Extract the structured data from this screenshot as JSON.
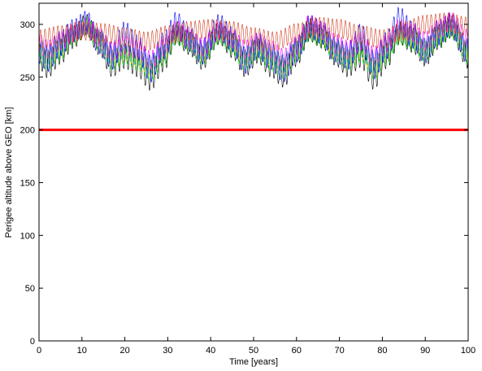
{
  "chart_data": {
    "type": "line",
    "title": "",
    "xlabel": "Time [years]",
    "ylabel": "Perigee altitude above GEO [km]",
    "xlim": [
      0,
      100
    ],
    "ylim": [
      0,
      320
    ],
    "xticks": [
      0,
      10,
      20,
      30,
      40,
      50,
      60,
      70,
      80,
      90,
      100
    ],
    "yticks": [
      0,
      50,
      100,
      150,
      200,
      250,
      300
    ],
    "grid": false,
    "legend": "none",
    "threshold_line": {
      "y": 200,
      "color": "#ff0000"
    },
    "series": [
      {
        "color": "#000000",
        "x": [
          0,
          2,
          5,
          8,
          11,
          14,
          17,
          20,
          23,
          26,
          29,
          32,
          35,
          38,
          42,
          45,
          48,
          51,
          54,
          57,
          60,
          63,
          66,
          69,
          72,
          75,
          78,
          81,
          84,
          87,
          90,
          93,
          96,
          100
        ],
        "y": [
          270,
          262,
          274,
          288,
          300,
          282,
          262,
          270,
          262,
          250,
          268,
          292,
          282,
          268,
          292,
          280,
          262,
          275,
          262,
          253,
          272,
          295,
          288,
          272,
          262,
          272,
          252,
          270,
          292,
          285,
          272,
          288,
          298,
          270
        ],
        "amplitude": [
          12,
          13,
          12,
          11,
          10,
          11,
          12,
          12,
          12,
          13,
          13,
          11,
          11,
          11,
          11,
          12,
          12,
          12,
          12,
          13,
          12,
          11,
          11,
          11,
          12,
          13,
          14,
          12,
          11,
          12,
          12,
          12,
          11,
          12
        ]
      },
      {
        "color": "#00c800",
        "x": [
          0,
          2,
          5,
          8,
          11,
          14,
          17,
          20,
          23,
          26,
          29,
          32,
          35,
          38,
          42,
          45,
          48,
          51,
          54,
          57,
          60,
          63,
          66,
          69,
          72,
          75,
          78,
          81,
          84,
          87,
          90,
          93,
          96,
          100
        ],
        "y": [
          272,
          266,
          276,
          289,
          298,
          284,
          266,
          272,
          266,
          256,
          270,
          290,
          283,
          270,
          290,
          281,
          266,
          276,
          266,
          258,
          274,
          293,
          287,
          274,
          266,
          274,
          258,
          272,
          290,
          285,
          274,
          288,
          296,
          272
        ],
        "amplitude": [
          10,
          10,
          10,
          9,
          9,
          9,
          10,
          10,
          10,
          10,
          10,
          9,
          9,
          9,
          9,
          10,
          10,
          10,
          10,
          10,
          10,
          9,
          9,
          9,
          10,
          10,
          11,
          10,
          9,
          10,
          10,
          10,
          9,
          10
        ]
      },
      {
        "color": "#ffd700",
        "x": [
          0,
          2,
          5,
          8,
          11,
          14,
          17,
          20,
          23,
          26,
          29,
          32,
          35,
          38,
          42,
          45,
          48,
          51,
          54,
          57,
          60,
          63,
          66,
          69,
          72,
          75,
          78,
          81,
          84,
          87,
          90,
          93,
          96,
          100
        ],
        "y": [
          274,
          268,
          278,
          290,
          298,
          286,
          268,
          274,
          268,
          258,
          272,
          290,
          284,
          272,
          290,
          282,
          268,
          278,
          268,
          260,
          276,
          293,
          288,
          276,
          268,
          276,
          260,
          274,
          290,
          286,
          276,
          289,
          296,
          274
        ],
        "amplitude": [
          8,
          8,
          8,
          8,
          7,
          8,
          8,
          8,
          8,
          8,
          8,
          7,
          8,
          8,
          7,
          8,
          8,
          8,
          8,
          8,
          8,
          7,
          8,
          8,
          8,
          8,
          9,
          8,
          7,
          8,
          8,
          8,
          7,
          8
        ]
      },
      {
        "color": "#00c8c8",
        "x": [
          0,
          2,
          5,
          8,
          11,
          14,
          17,
          20,
          23,
          26,
          29,
          32,
          35,
          38,
          42,
          45,
          48,
          51,
          54,
          57,
          60,
          63,
          66,
          69,
          72,
          75,
          78,
          81,
          84,
          87,
          90,
          93,
          96,
          100
        ],
        "y": [
          276,
          270,
          279,
          291,
          299,
          287,
          270,
          276,
          270,
          262,
          274,
          291,
          285,
          274,
          291,
          283,
          270,
          279,
          270,
          263,
          278,
          294,
          289,
          278,
          270,
          278,
          263,
          276,
          291,
          287,
          278,
          290,
          297,
          276
        ],
        "amplitude": [
          9,
          9,
          9,
          8,
          8,
          8,
          9,
          9,
          9,
          9,
          9,
          8,
          8,
          8,
          8,
          9,
          9,
          9,
          9,
          9,
          9,
          8,
          8,
          8,
          9,
          9,
          10,
          9,
          8,
          9,
          9,
          9,
          8,
          9
        ]
      },
      {
        "color": "#0000ff",
        "x": [
          0,
          2,
          5,
          8,
          11,
          14,
          17,
          20,
          23,
          26,
          29,
          32,
          35,
          38,
          42,
          45,
          48,
          51,
          54,
          57,
          60,
          63,
          66,
          69,
          72,
          75,
          78,
          81,
          84,
          87,
          90,
          93,
          96,
          100
        ],
        "y": [
          275,
          268,
          282,
          294,
          302,
          284,
          270,
          290,
          278,
          258,
          280,
          300,
          286,
          274,
          298,
          286,
          266,
          280,
          270,
          258,
          276,
          298,
          292,
          276,
          270,
          288,
          262,
          280,
          305,
          290,
          275,
          292,
          300,
          274
        ],
        "amplitude": [
          12,
          13,
          12,
          11,
          11,
          12,
          13,
          13,
          12,
          13,
          13,
          12,
          12,
          12,
          12,
          12,
          13,
          12,
          13,
          13,
          12,
          11,
          11,
          12,
          13,
          13,
          14,
          13,
          12,
          13,
          12,
          12,
          11,
          12
        ]
      },
      {
        "color": "#ff00ff",
        "x": [
          0,
          2,
          5,
          8,
          11,
          14,
          17,
          20,
          23,
          26,
          29,
          32,
          35,
          38,
          42,
          45,
          48,
          51,
          54,
          57,
          60,
          63,
          66,
          69,
          72,
          75,
          78,
          81,
          84,
          87,
          90,
          93,
          96,
          100
        ],
        "y": [
          282,
          276,
          284,
          292,
          298,
          288,
          274,
          280,
          276,
          266,
          278,
          295,
          287,
          278,
          294,
          286,
          276,
          284,
          276,
          268,
          280,
          300,
          294,
          282,
          276,
          284,
          270,
          282,
          296,
          292,
          284,
          296,
          303,
          286
        ],
        "amplitude": [
          9,
          9,
          9,
          9,
          9,
          9,
          9,
          9,
          9,
          9,
          9,
          9,
          9,
          9,
          9,
          9,
          9,
          9,
          9,
          9,
          9,
          9,
          9,
          9,
          9,
          9,
          9,
          9,
          9,
          9,
          9,
          9,
          9,
          9
        ]
      },
      {
        "color": "#d23c1e",
        "x": [
          0,
          5,
          10,
          15,
          20,
          25,
          30,
          35,
          40,
          45,
          50,
          55,
          60,
          65,
          70,
          75,
          80,
          85,
          90,
          95,
          100
        ],
        "y": [
          286,
          290,
          294,
          292,
          288,
          284,
          290,
          294,
          296,
          294,
          288,
          284,
          292,
          298,
          296,
          290,
          286,
          294,
          300,
          302,
          298
        ],
        "amplitude": [
          9,
          9,
          9,
          9,
          9,
          9,
          9,
          9,
          9,
          9,
          9,
          9,
          9,
          9,
          9,
          9,
          9,
          9,
          9,
          9,
          9
        ]
      }
    ]
  }
}
